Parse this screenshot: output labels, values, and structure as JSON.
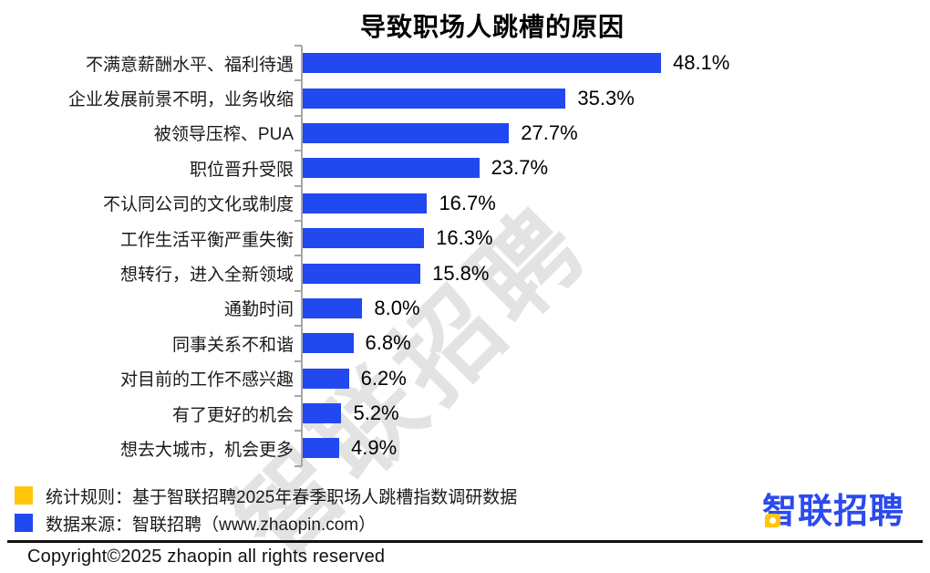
{
  "chart_data": {
    "type": "bar",
    "orientation": "horizontal",
    "title": "导致职场人跳槽的原因",
    "categories": [
      "不满意薪酬水平、福利待遇",
      "企业发展前景不明，业务收缩",
      "被领导压榨、PUA",
      "职位晋升受限",
      "不认同公司的文化或制度",
      "工作生活平衡严重失衡",
      "想转行，进入全新领域",
      "通勤时间",
      "同事关系不和谐",
      "对目前的工作不感兴趣",
      "有了更好的机会",
      "想去大城市，机会更多"
    ],
    "values": [
      48.1,
      35.3,
      27.7,
      23.7,
      16.7,
      16.3,
      15.8,
      8.0,
      6.8,
      6.2,
      5.2,
      4.9
    ],
    "value_suffix": "%",
    "xlim": [
      0,
      50
    ],
    "grid": false,
    "legend_position": "none",
    "data_labels": [
      "48.1%",
      "35.3%",
      "27.7%",
      "23.7%",
      "16.7%",
      "16.3%",
      "15.8%",
      "8.0%",
      "6.8%",
      "6.2%",
      "5.2%",
      "4.9%"
    ]
  },
  "watermark": {
    "text": "智联招聘",
    "color": "#E3E3E3"
  },
  "legend": {
    "items": [
      {
        "swatch_color": "#FFC60B",
        "label": "统计规则：基于智联招聘2025年春季职场人跳槽指数调研数据"
      },
      {
        "swatch_color": "#2248EF",
        "label": "数据来源：智联招聘（www.zhaopin.com）"
      }
    ]
  },
  "branding": {
    "logo_text": "智联招聘",
    "logo_color": "#2B4BEE",
    "logo_accent_color": "#FFC60B"
  },
  "footer": {
    "copyright": "Copyright©2025 zhaopin all rights reserved"
  },
  "colors": {
    "bar": "#2248EF",
    "axis": "#A6A6A6",
    "watermark": "#E3E3E3",
    "title": "#000000"
  }
}
